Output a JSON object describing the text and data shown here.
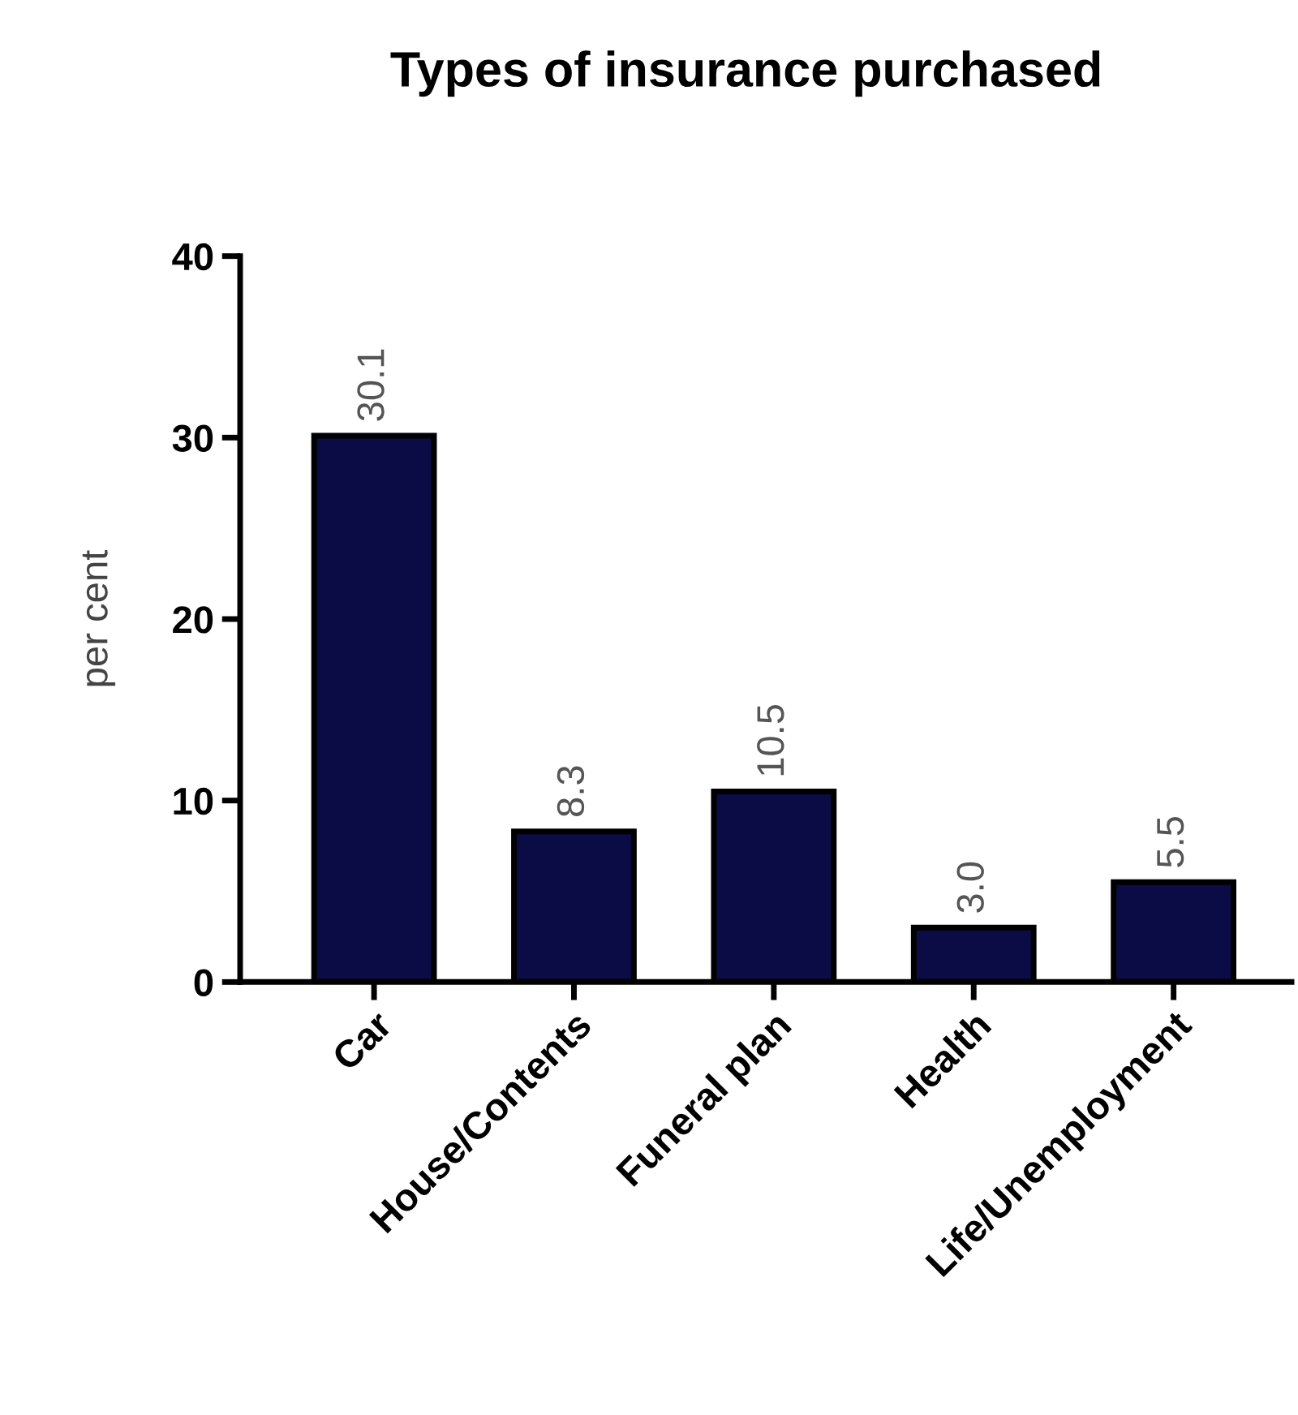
{
  "chart_data": {
    "type": "bar",
    "title": "Types of insurance purchased",
    "ylabel": "per cent",
    "categories": [
      "Car",
      "House/Contents",
      "Funeral plan",
      "Health",
      "Life/Unemployment"
    ],
    "values": [
      30.1,
      8.3,
      10.5,
      3.0,
      5.5
    ],
    "value_labels": [
      "30.1",
      "8.3",
      "10.5",
      "3.0",
      "5.5"
    ],
    "color": "#0b0b45",
    "ylim": [
      0,
      40
    ],
    "yticks": [
      0,
      10,
      20,
      30,
      40
    ],
    "grid": false,
    "legend": false
  }
}
